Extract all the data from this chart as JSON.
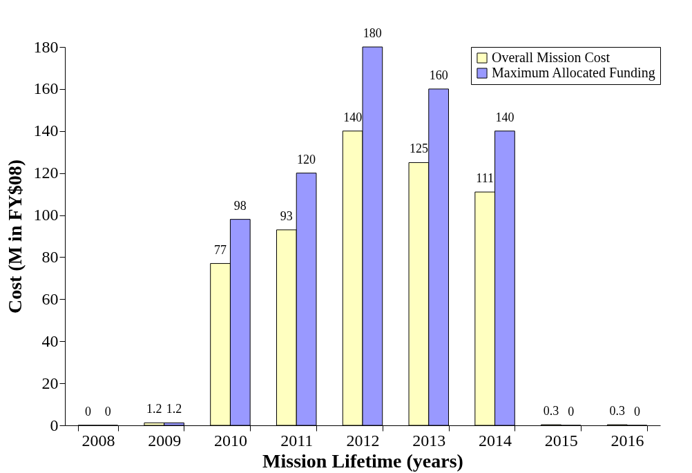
{
  "chart_data": {
    "type": "bar",
    "xlabel": "Mission Lifetime (years)",
    "ylabel": "Cost (M in FY$08)",
    "categories": [
      "2008",
      "2009",
      "2010",
      "2011",
      "2012",
      "2013",
      "2014",
      "2015",
      "2016"
    ],
    "series": [
      {
        "name": "Overall Mission Cost",
        "color": "#ffffc0",
        "values": [
          0,
          1.2,
          77,
          93,
          140,
          125,
          111,
          0.3,
          0.3
        ]
      },
      {
        "name": "Maximum Allocated Funding",
        "color": "#9999ff",
        "values": [
          0,
          1.2,
          98,
          120,
          180,
          160,
          140,
          0,
          0
        ]
      }
    ],
    "ylim": [
      0,
      180
    ],
    "yticks": [
      0,
      20,
      40,
      60,
      80,
      100,
      120,
      140,
      160,
      180
    ],
    "data_labels": true,
    "grid": false,
    "legend": "top right"
  }
}
